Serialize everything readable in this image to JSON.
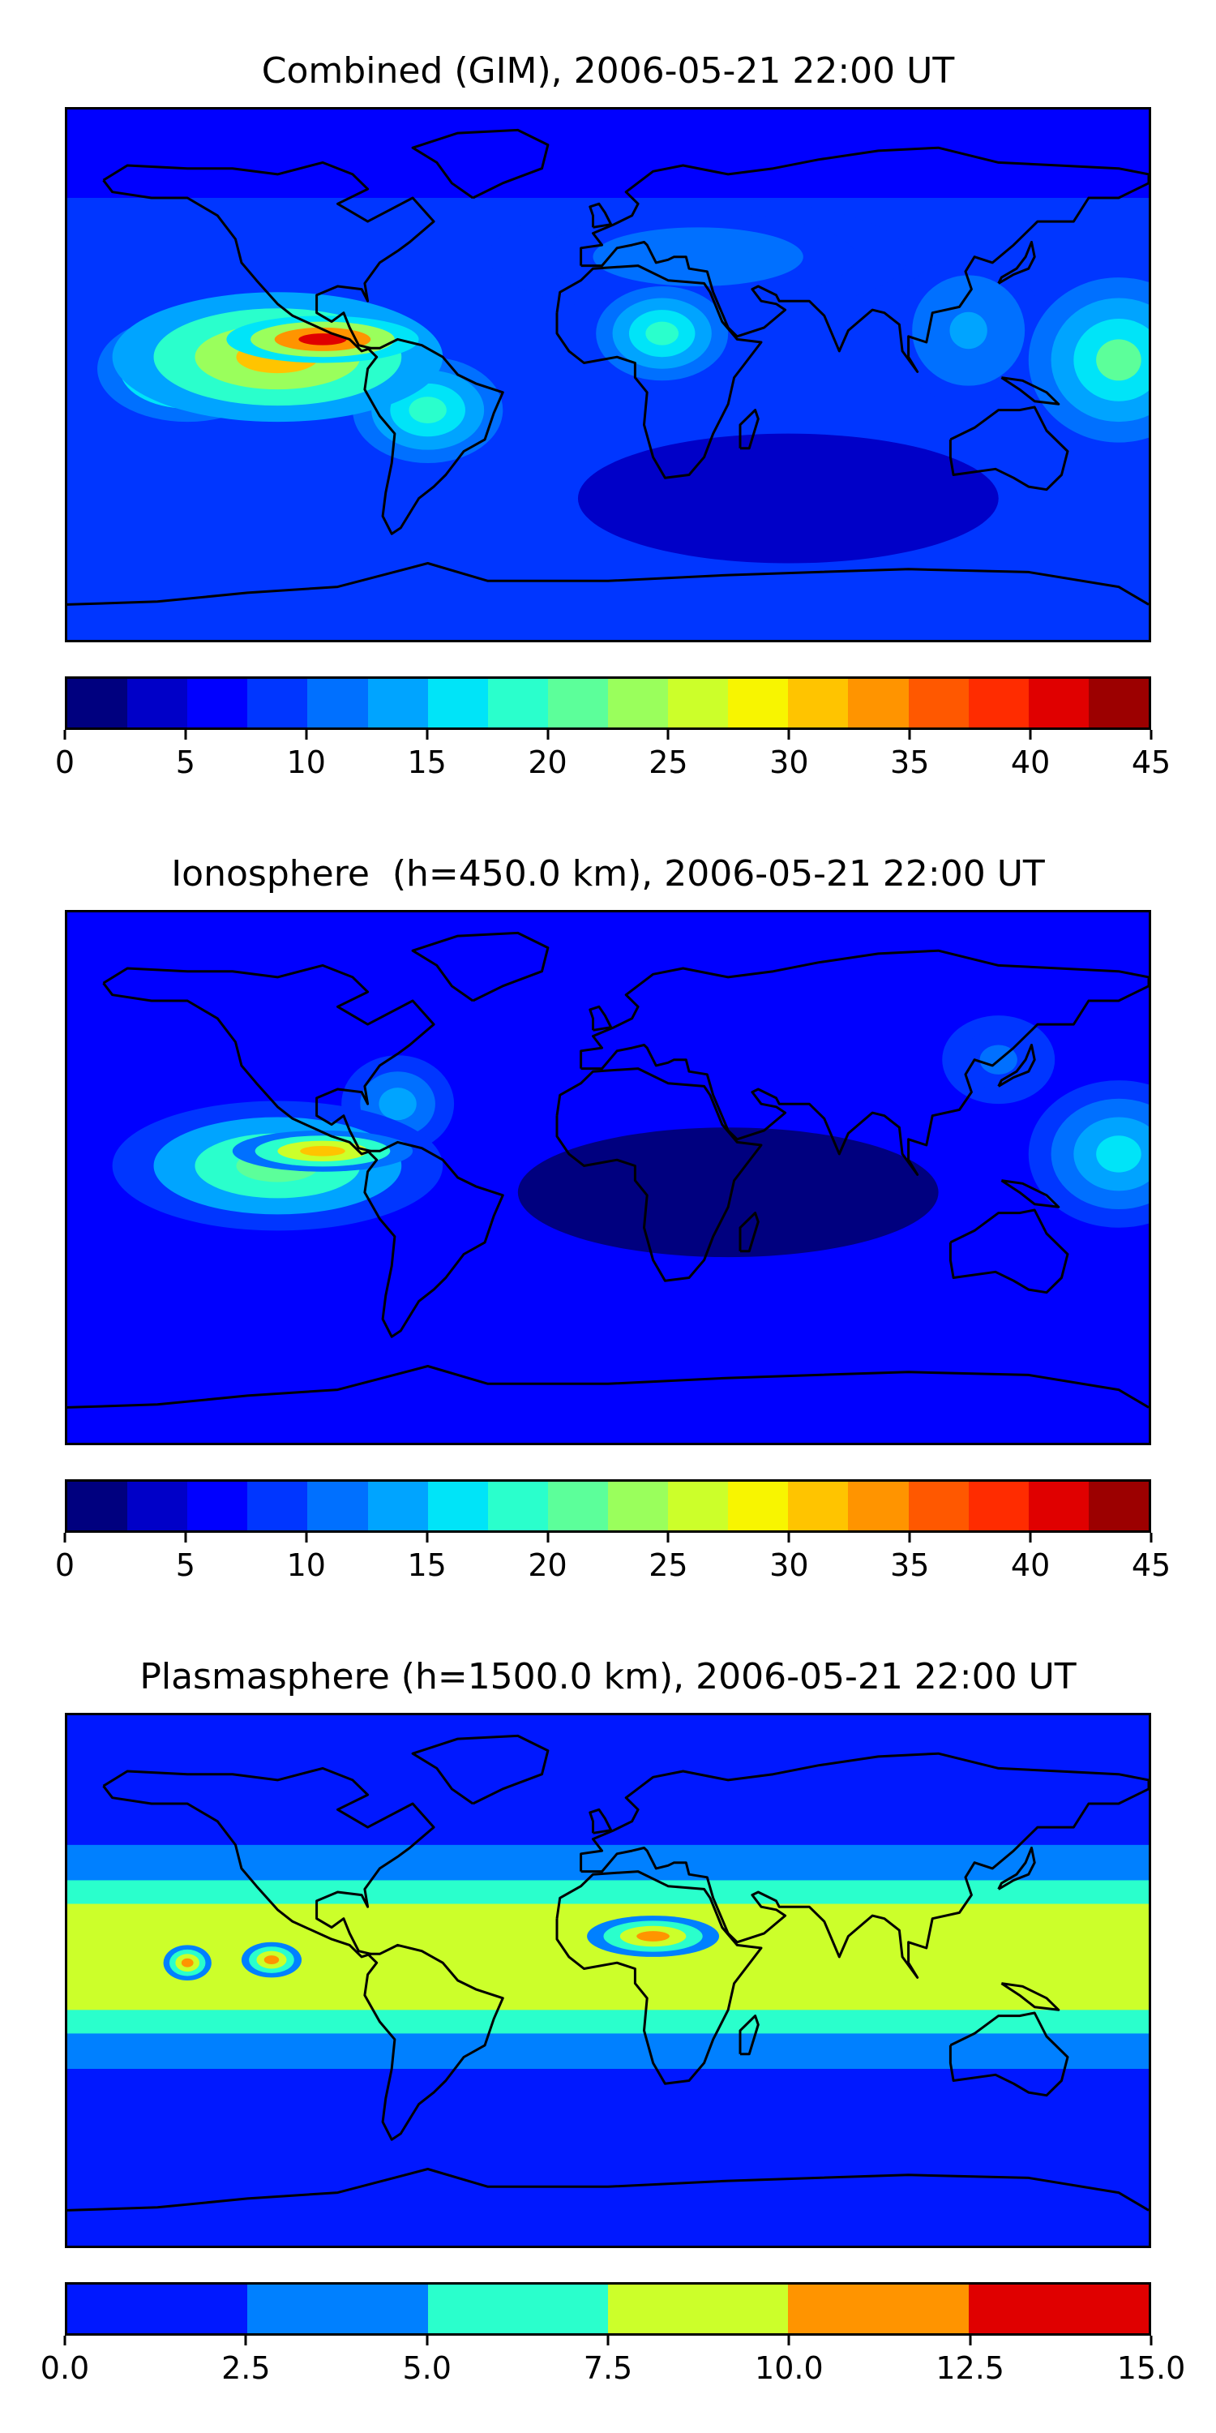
{
  "chart_data": [
    {
      "type": "heatmap",
      "title": "Combined (GIM), 2006-05-21 22:00 UT",
      "colorbar": {
        "levels": [
          0,
          2.5,
          5,
          7.5,
          10,
          12.5,
          15,
          17.5,
          20,
          22.5,
          25,
          27.5,
          30,
          32.5,
          35,
          37.5,
          40,
          42.5,
          45
        ],
        "colors": [
          "#00007f",
          "#0000c8",
          "#0000ff",
          "#0036ff",
          "#0070ff",
          "#00a4ff",
          "#00e4f8",
          "#2affcc",
          "#5cff9a",
          "#9aff5c",
          "#ccff2a",
          "#f8f500",
          "#ffc400",
          "#ff9400",
          "#ff5800",
          "#ff2c00",
          "#e00000",
          "#9c0000"
        ],
        "tick_labels": [
          "0",
          "5",
          "10",
          "15",
          "20",
          "25",
          "30",
          "35",
          "40",
          "45"
        ]
      },
      "fields": [
        {
          "lon": -95,
          "lat": 12,
          "value": 42,
          "width": 32,
          "height": 8
        },
        {
          "lon": -110,
          "lat": 6,
          "value": 30,
          "width": 55,
          "height": 22
        },
        {
          "lon": -140,
          "lat": 2,
          "value": 26,
          "width": 30,
          "height": 18
        },
        {
          "lon": -60,
          "lat": -12,
          "value": 18,
          "width": 25,
          "height": 18
        },
        {
          "lon": 18,
          "lat": 14,
          "value": 18,
          "width": 22,
          "height": 16
        },
        {
          "lon": 170,
          "lat": 5,
          "value": 20,
          "width": 30,
          "height": 28
        },
        {
          "lon": 120,
          "lat": 15,
          "value": 14,
          "width": 25,
          "height": 25
        },
        {
          "lon": 30,
          "lat": 40,
          "value": 11,
          "width": 70,
          "height": 20
        }
      ],
      "background_level": 7.5,
      "polar_level": 5,
      "low_region": {
        "lon": 60,
        "lat": -42,
        "value": 3
      }
    },
    {
      "type": "heatmap",
      "title": "Ionosphere  (h=450.0 km), 2006-05-21 22:00 UT",
      "colorbar": {
        "levels": [
          0,
          2.5,
          5,
          7.5,
          10,
          12.5,
          15,
          17.5,
          20,
          22.5,
          25,
          27.5,
          30,
          32.5,
          35,
          37.5,
          40,
          42.5,
          45
        ],
        "colors": [
          "#00007f",
          "#0000c8",
          "#0000ff",
          "#0036ff",
          "#0070ff",
          "#00a4ff",
          "#00e4f8",
          "#2affcc",
          "#5cff9a",
          "#9aff5c",
          "#ccff2a",
          "#f8f500",
          "#ffc400",
          "#ff9400",
          "#ff5800",
          "#ff2c00",
          "#e00000",
          "#9c0000"
        ],
        "tick_labels": [
          "0",
          "5",
          "10",
          "15",
          "20",
          "25",
          "30",
          "35",
          "40",
          "45"
        ]
      },
      "fields": [
        {
          "lon": -95,
          "lat": 9,
          "value": 32,
          "width": 30,
          "height": 7
        },
        {
          "lon": -110,
          "lat": 4,
          "value": 22,
          "width": 55,
          "height": 22
        },
        {
          "lon": -70,
          "lat": 25,
          "value": 14,
          "width": 25,
          "height": 22
        },
        {
          "lon": 170,
          "lat": 8,
          "value": 16,
          "width": 30,
          "height": 25
        },
        {
          "lon": 130,
          "lat": 40,
          "value": 10,
          "width": 25,
          "height": 20
        }
      ],
      "background_level": 5,
      "polar_level": 5,
      "low_region": {
        "lon": 40,
        "lat": -5,
        "value": 1.5
      }
    },
    {
      "type": "heatmap",
      "title": "Plasmasphere (h=1500.0 km), 2006-05-21 22:00 UT",
      "colorbar": {
        "levels": [
          0,
          2.5,
          5,
          7.5,
          10,
          12.5,
          15
        ],
        "colors": [
          "#0018ff",
          "#0080ff",
          "#2affcc",
          "#ccff2a",
          "#ff9400",
          "#e00000"
        ],
        "tick_labels": [
          "0.0",
          "2.5",
          "5.0",
          "7.5",
          "10.0",
          "12.5",
          "15.0"
        ]
      },
      "fields": [
        {
          "lon": 15,
          "lat": 15,
          "value": 11,
          "width": 22,
          "height": 7
        },
        {
          "lon": -140,
          "lat": 6,
          "value": 11,
          "width": 8,
          "height": 6
        },
        {
          "lon": -112,
          "lat": 7,
          "value": 11,
          "width": 10,
          "height": 6
        }
      ],
      "band": {
        "lat_center": 8,
        "half_width": 26,
        "edge": 38,
        "levels": [
          8.5,
          6.5,
          4
        ]
      },
      "background_level": 1.5
    }
  ]
}
